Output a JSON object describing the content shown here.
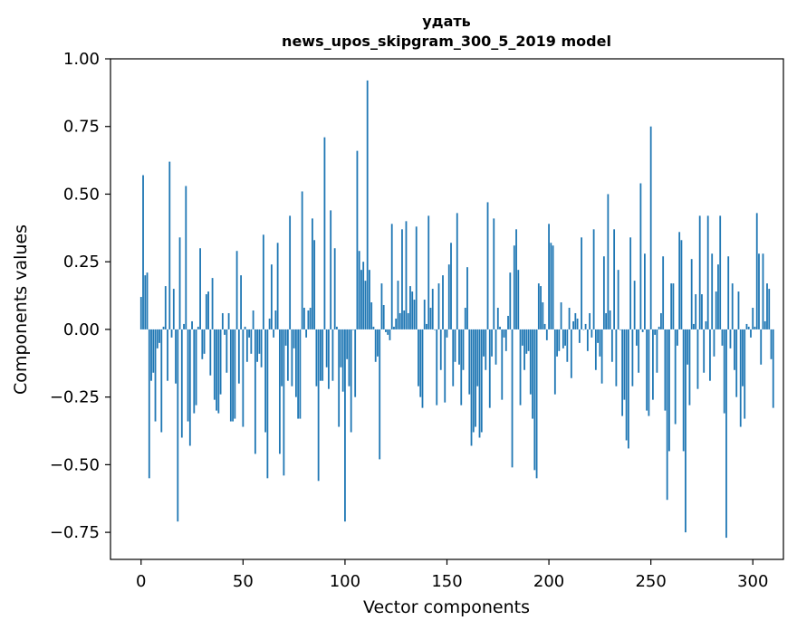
{
  "chart_data": {
    "type": "bar",
    "title_lines": [
      "удать",
      "news_upos_skipgram_300_5_2019 model"
    ],
    "xlabel": "Vector components",
    "ylabel": "Components values",
    "xlim": [
      -15,
      315
    ],
    "ylim": [
      -0.85,
      1.0
    ],
    "xticks": [
      0,
      50,
      100,
      150,
      200,
      250,
      300
    ],
    "xtick_labels": [
      "0",
      "50",
      "100",
      "150",
      "200",
      "250",
      "300"
    ],
    "yticks": [
      1.0,
      0.75,
      0.5,
      0.25,
      0.0,
      -0.25,
      -0.5,
      -0.75
    ],
    "ytick_labels": [
      "1.00",
      "0.75",
      "0.50",
      "0.25",
      "0.00",
      "−0.25",
      "−0.50",
      "−0.75"
    ],
    "color": "#1f77b4",
    "values": [
      0.12,
      0.57,
      0.2,
      0.21,
      -0.55,
      -0.19,
      -0.16,
      -0.34,
      -0.07,
      -0.05,
      -0.38,
      0.01,
      0.16,
      -0.19,
      0.62,
      -0.03,
      0.15,
      -0.2,
      -0.71,
      0.34,
      -0.4,
      0.02,
      0.53,
      -0.34,
      -0.43,
      0.03,
      -0.31,
      -0.28,
      0.01,
      0.3,
      -0.11,
      -0.09,
      0.13,
      0.14,
      -0.17,
      0.19,
      -0.26,
      -0.3,
      -0.31,
      -0.24,
      0.06,
      -0.02,
      -0.16,
      0.06,
      -0.34,
      -0.34,
      -0.33,
      0.29,
      -0.2,
      0.2,
      -0.36,
      0.01,
      -0.12,
      -0.03,
      -0.09,
      0.07,
      -0.46,
      -0.12,
      -0.09,
      -0.14,
      0.35,
      -0.38,
      -0.55,
      0.04,
      0.24,
      -0.03,
      0.07,
      0.32,
      -0.46,
      -0.21,
      -0.54,
      -0.06,
      -0.19,
      0.42,
      -0.21,
      -0.07,
      -0.25,
      -0.33,
      -0.33,
      0.51,
      0.08,
      -0.03,
      0.07,
      0.08,
      0.41,
      0.33,
      -0.21,
      -0.56,
      -0.19,
      -0.19,
      0.71,
      -0.14,
      -0.22,
      0.44,
      -0.19,
      0.3,
      0.01,
      -0.36,
      -0.14,
      -0.23,
      -0.71,
      -0.11,
      -0.21,
      -0.38,
      0.0,
      -0.25,
      0.66,
      0.29,
      0.22,
      0.25,
      0.18,
      0.92,
      0.22,
      0.1,
      0.01,
      -0.12,
      -0.1,
      -0.48,
      0.17,
      0.09,
      -0.01,
      -0.02,
      -0.04,
      0.39,
      0.01,
      0.04,
      0.18,
      0.06,
      0.37,
      0.07,
      0.4,
      0.06,
      0.16,
      0.14,
      0.11,
      0.38,
      -0.21,
      -0.25,
      -0.29,
      0.11,
      0.02,
      0.42,
      0.08,
      0.15,
      0.0,
      -0.28,
      0.17,
      -0.15,
      0.2,
      -0.27,
      -0.03,
      0.24,
      0.32,
      -0.21,
      -0.12,
      0.43,
      -0.13,
      -0.28,
      -0.15,
      0.08,
      0.23,
      -0.24,
      -0.43,
      -0.38,
      -0.36,
      -0.21,
      -0.4,
      -0.38,
      -0.1,
      -0.15,
      0.47,
      -0.29,
      -0.1,
      0.41,
      -0.13,
      0.08,
      0.01,
      -0.26,
      -0.03,
      -0.08,
      0.05,
      0.21,
      -0.51,
      0.31,
      0.37,
      0.22,
      -0.28,
      -0.06,
      -0.15,
      -0.09,
      -0.08,
      -0.24,
      -0.33,
      -0.52,
      -0.55,
      0.17,
      0.16,
      0.1,
      0.02,
      -0.04,
      0.39,
      0.32,
      0.31,
      -0.24,
      -0.1,
      -0.08,
      0.1,
      -0.07,
      -0.06,
      -0.12,
      0.08,
      -0.18,
      0.03,
      0.06,
      0.04,
      -0.05,
      0.34,
      0.0,
      0.02,
      -0.08,
      0.06,
      -0.03,
      0.37,
      -0.15,
      -0.05,
      -0.1,
      -0.2,
      0.27,
      0.06,
      0.5,
      0.07,
      -0.12,
      0.37,
      -0.21,
      0.22,
      0.0,
      -0.32,
      -0.26,
      -0.41,
      -0.44,
      0.34,
      -0.21,
      0.18,
      -0.06,
      -0.16,
      0.54,
      -0.01,
      0.28,
      -0.3,
      -0.32,
      0.75,
      -0.26,
      -0.02,
      -0.16,
      0.01,
      0.06,
      0.27,
      -0.3,
      -0.63,
      -0.45,
      0.17,
      0.17,
      -0.35,
      -0.06,
      0.36,
      0.33,
      -0.45,
      -0.75,
      -0.13,
      -0.28,
      0.26,
      0.02,
      0.13,
      -0.22,
      0.42,
      0.13,
      -0.16,
      0.03,
      0.42,
      -0.19,
      0.28,
      -0.1,
      0.14,
      0.24,
      0.42,
      -0.06,
      -0.31,
      -0.77,
      0.27,
      -0.07,
      0.17,
      -0.15,
      -0.25,
      0.14,
      -0.36,
      -0.21,
      -0.33,
      0.02,
      0.01,
      -0.03,
      0.08,
      0.01,
      0.43,
      0.28,
      -0.13,
      0.28,
      0.03,
      0.17,
      0.15,
      -0.11,
      -0.29
    ]
  }
}
